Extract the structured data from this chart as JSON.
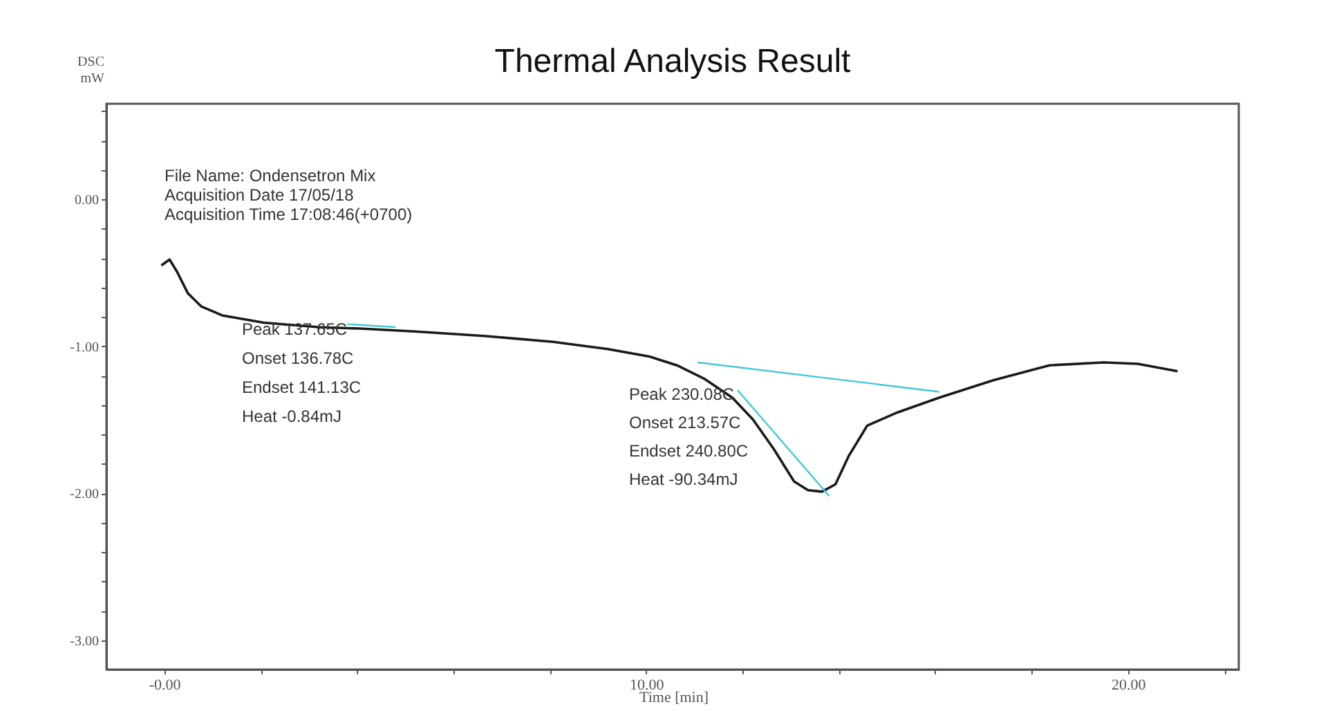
{
  "chart_data": {
    "type": "line",
    "title": "Thermal Analysis Result",
    "xlabel": "Time  [min]",
    "ylabel": "DSC mW",
    "xlim": [
      -1.2,
      22.3
    ],
    "ylim": [
      -3.2,
      0.65
    ],
    "xticks": [
      {
        "value": 0,
        "label": "-0.00"
      },
      {
        "value": 2,
        "label": null
      },
      {
        "value": 4,
        "label": null
      },
      {
        "value": 6,
        "label": null
      },
      {
        "value": 8,
        "label": null
      },
      {
        "value": 10,
        "label": "10.00"
      },
      {
        "value": 12,
        "label": null
      },
      {
        "value": 14,
        "label": null
      },
      {
        "value": 16,
        "label": null
      },
      {
        "value": 18,
        "label": null
      },
      {
        "value": 20,
        "label": "20.00"
      },
      {
        "value": 22,
        "label": null
      }
    ],
    "yticks": [
      {
        "value": 0.6,
        "label": null
      },
      {
        "value": 0.4,
        "label": null
      },
      {
        "value": 0.2,
        "label": null
      },
      {
        "value": 0,
        "label": "0.00"
      },
      {
        "value": -0.2,
        "label": null
      },
      {
        "value": -0.4,
        "label": null
      },
      {
        "value": -0.6,
        "label": null
      },
      {
        "value": -0.8,
        "label": null
      },
      {
        "value": -1,
        "label": "-1.00"
      },
      {
        "value": -1.2,
        "label": null
      },
      {
        "value": -1.4,
        "label": null
      },
      {
        "value": -1.6,
        "label": null
      },
      {
        "value": -1.8,
        "label": null
      },
      {
        "value": -2,
        "label": "-2.00"
      },
      {
        "value": -2.2,
        "label": null
      },
      {
        "value": -2.4,
        "label": null
      },
      {
        "value": -2.6,
        "label": null
      },
      {
        "value": -2.8,
        "label": null
      },
      {
        "value": -3,
        "label": "-3.00"
      }
    ],
    "grid": false,
    "series": [
      {
        "color": "#1a1a1a",
        "x": [
          -0.06,
          0.11,
          0.26,
          0.49,
          0.77,
          1.2,
          2.06,
          3.2,
          4.06,
          5.2,
          6.64,
          8.07,
          9.21,
          10.07,
          10.64,
          11.2,
          11.79,
          12.22,
          12.65,
          13.07,
          13.36,
          13.65,
          13.93,
          14.2,
          14.59,
          15.22,
          16.08,
          17.22,
          18.37,
          19.5,
          20.2,
          21.03
        ],
        "values": [
          -0.45,
          -0.41,
          -0.49,
          -0.64,
          -0.73,
          -0.79,
          -0.84,
          -0.87,
          -0.88,
          -0.9,
          -0.93,
          -0.97,
          -1.02,
          -1.07,
          -1.13,
          -1.22,
          -1.35,
          -1.5,
          -1.7,
          -1.92,
          -1.98,
          -1.99,
          -1.94,
          -1.75,
          -1.54,
          -1.45,
          -1.35,
          -1.23,
          -1.13,
          -1.11,
          -1.12,
          -1.17
        ]
      },
      {
        "type": "line",
        "color": "#40c8d8",
        "x": [
          11.07,
          16.08
        ],
        "values": [
          -1.11,
          -1.31
        ]
      },
      {
        "type": "line",
        "color": "#40c8d8",
        "x": [
          11.9,
          13.8
        ],
        "values": [
          -1.3,
          -2.02
        ]
      },
      {
        "type": "line",
        "color": "#40c8d8",
        "x": [
          3.8,
          4.8
        ],
        "values": [
          -0.85,
          -0.87
        ]
      }
    ],
    "annotations": [
      "File Name: Ondensetron Mix",
      "Acquisition Date 17/05/18",
      "Acquisition Time 17:08:46(+0700)",
      "Peak 137.65C",
      "Onset 136.78C",
      "Endset 141.13C",
      "Heat -0.84mJ",
      "Peak 230.08C",
      "Onset 213.57C",
      "Endset 240.80C",
      "Heat -90.34mJ"
    ]
  }
}
